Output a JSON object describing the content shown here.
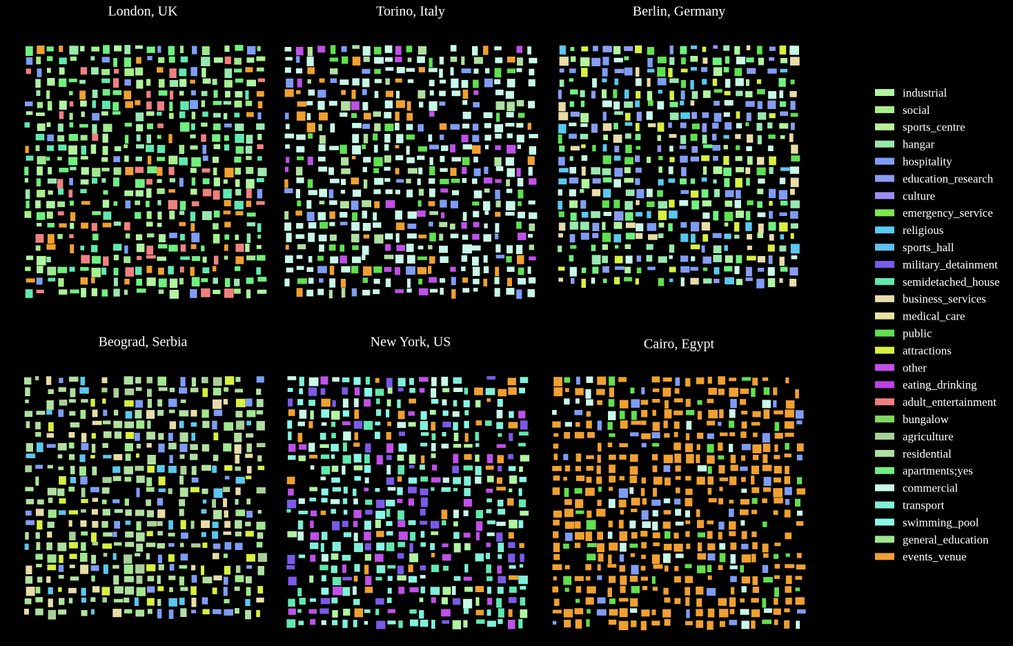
{
  "panels": [
    {
      "title": "London, UK"
    },
    {
      "title": "Torino, Italy"
    },
    {
      "title": "Berlin, Germany"
    },
    {
      "title": "Beograd, Serbia"
    },
    {
      "title": "New York, US"
    },
    {
      "title": "Cairo, Egypt"
    }
  ],
  "legend": [
    {
      "label": "industrial",
      "color": "#b0f5a0"
    },
    {
      "label": "social",
      "color": "#a8f08c"
    },
    {
      "label": "sports_centre",
      "color": "#b8f09a"
    },
    {
      "label": "hangar",
      "color": "#98e8b0"
    },
    {
      "label": "hospitality",
      "color": "#7f9cf5"
    },
    {
      "label": "education_research",
      "color": "#8a9cf0"
    },
    {
      "label": "culture",
      "color": "#9a8ff0"
    },
    {
      "label": "emergency_service",
      "color": "#7ee850"
    },
    {
      "label": "religious",
      "color": "#5ac8f0"
    },
    {
      "label": "sports_hall",
      "color": "#60c0f0"
    },
    {
      "label": "military_detainment",
      "color": "#7a5ae8"
    },
    {
      "label": "semidetached_house",
      "color": "#60e8b0"
    },
    {
      "label": "business_services",
      "color": "#e8dca8"
    },
    {
      "label": "medical_care",
      "color": "#e8e4a0"
    },
    {
      "label": "public",
      "color": "#60e050"
    },
    {
      "label": "attractions",
      "color": "#d8f040"
    },
    {
      "label": "other",
      "color": "#c050e8"
    },
    {
      "label": "eating_drinking",
      "color": "#c040e8"
    },
    {
      "label": "adult_entertainment",
      "color": "#f08080"
    },
    {
      "label": "bungalow",
      "color": "#80d860"
    },
    {
      "label": "agriculture",
      "color": "#a8d098"
    },
    {
      "label": "residential",
      "color": "#b0e0a0"
    },
    {
      "label": "apartments;yes",
      "color": "#70f080"
    },
    {
      "label": "commercial",
      "color": "#c8f8e8"
    },
    {
      "label": "transport",
      "color": "#80f0d8"
    },
    {
      "label": "swimming_pool",
      "color": "#88f8e8"
    },
    {
      "label": "general_education",
      "color": "#a0e890"
    },
    {
      "label": "events_venue",
      "color": "#f0a030"
    }
  ]
}
